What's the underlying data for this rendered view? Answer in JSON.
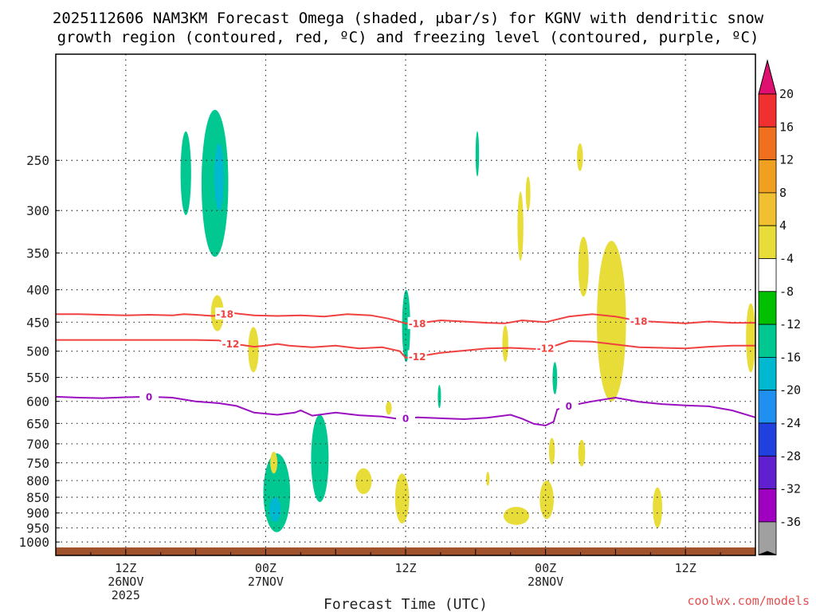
{
  "title": {
    "line1": "2025112606 NAM3KM Forecast Omega (shaded, μbar/s) for KGNV with dendritic snow",
    "line2": "growth region (contoured, red, ºC) and freezing level (contoured, purple, ºC)"
  },
  "credit": "coolwx.com/models",
  "chart_data": {
    "type": "time-height",
    "title": "2025112606 NAM3KM Forecast Omega (shaded, μbar/s) for KGNV with dendritic snow growth region (contoured, red, ºC) and freezing level (contoured, purple, ºC)",
    "xlabel": "Forecast Time (UTC)",
    "ylabel": "",
    "x_units": "forecast hour",
    "xlim": [
      0,
      60
    ],
    "ylim": [
      1050,
      170
    ],
    "y_scale": "log-pressure",
    "y_ticks": [
      250,
      300,
      350,
      400,
      450,
      500,
      550,
      600,
      650,
      700,
      750,
      800,
      850,
      900,
      950,
      1000
    ],
    "x_ticks": [
      {
        "hour": 6,
        "lines": [
          "12Z",
          "26NOV",
          "2025"
        ]
      },
      {
        "hour": 18,
        "lines": [
          "00Z",
          "27NOV"
        ]
      },
      {
        "hour": 30,
        "lines": [
          "12Z"
        ]
      },
      {
        "hour": 42,
        "lines": [
          "00Z",
          "28NOV"
        ]
      },
      {
        "hour": 54,
        "lines": [
          "12Z"
        ]
      }
    ],
    "grid": "dotted",
    "surface_color": "#a0522d",
    "colorbar": {
      "labels": [
        "20",
        "16",
        "12",
        "8",
        "4",
        "-4",
        "-8",
        "-12",
        "-16",
        "-20",
        "-24",
        "-28",
        "-32",
        "-36"
      ],
      "colors": [
        "#f03030",
        "#f07020",
        "#f0a020",
        "#f0c030",
        "#e8dc38",
        "#ffffff",
        "#00c000",
        "#00c890",
        "#00b8d0",
        "#2090f0",
        "#2040e0",
        "#6020d0",
        "#a000c0",
        "#a0a0a0"
      ],
      "top_arrow": "#e01070",
      "bottom_arrow": "#000000"
    },
    "contours": [
      {
        "name": "-18",
        "color": "#f04040",
        "level": -18,
        "points": [
          [
            0,
            437
          ],
          [
            2,
            437
          ],
          [
            4,
            438
          ],
          [
            6,
            439
          ],
          [
            8,
            438
          ],
          [
            10,
            439
          ],
          [
            11,
            437
          ],
          [
            12,
            438
          ],
          [
            13.5,
            440
          ],
          [
            15,
            435
          ],
          [
            17,
            439
          ],
          [
            19,
            440
          ],
          [
            21,
            439
          ],
          [
            23,
            441
          ],
          [
            25,
            437
          ],
          [
            27,
            439
          ],
          [
            28.5,
            444
          ],
          [
            30,
            452
          ],
          [
            31,
            452
          ],
          [
            33,
            447
          ],
          [
            35,
            449
          ],
          [
            37,
            451
          ],
          [
            38.5,
            452
          ],
          [
            40,
            447
          ],
          [
            42,
            450
          ],
          [
            44,
            441
          ],
          [
            46,
            437
          ],
          [
            48,
            441
          ],
          [
            50,
            448
          ],
          [
            52,
            450
          ],
          [
            54,
            452
          ],
          [
            56,
            449
          ],
          [
            58,
            451
          ],
          [
            60,
            451
          ]
        ]
      },
      {
        "name": "-12",
        "color": "#f04040",
        "level": -12,
        "points": [
          [
            0,
            480
          ],
          [
            2,
            480
          ],
          [
            4,
            480
          ],
          [
            6,
            480
          ],
          [
            8,
            480
          ],
          [
            10,
            480
          ],
          [
            12,
            480
          ],
          [
            14,
            481
          ],
          [
            15,
            487
          ],
          [
            16,
            489
          ],
          [
            17,
            492
          ],
          [
            18,
            490
          ],
          [
            19,
            487
          ],
          [
            20,
            490
          ],
          [
            22,
            493
          ],
          [
            24,
            490
          ],
          [
            26,
            495
          ],
          [
            28,
            493
          ],
          [
            29.5,
            500
          ],
          [
            30,
            512
          ],
          [
            31,
            510
          ],
          [
            33,
            503
          ],
          [
            35,
            499
          ],
          [
            37,
            495
          ],
          [
            39,
            494
          ],
          [
            41,
            496
          ],
          [
            42,
            495
          ],
          [
            43,
            489
          ],
          [
            44,
            482
          ],
          [
            46,
            483
          ],
          [
            48,
            488
          ],
          [
            50,
            493
          ],
          [
            52,
            494
          ],
          [
            54,
            495
          ],
          [
            56,
            492
          ],
          [
            58,
            490
          ],
          [
            60,
            490
          ]
        ]
      },
      {
        "name": "0",
        "color": "#9a10c0",
        "level": 0,
        "points": [
          [
            0,
            590
          ],
          [
            2,
            592
          ],
          [
            4,
            593
          ],
          [
            6,
            591
          ],
          [
            8,
            590
          ],
          [
            10,
            592
          ],
          [
            12,
            600
          ],
          [
            14,
            604
          ],
          [
            15.5,
            610
          ],
          [
            17,
            625
          ],
          [
            19,
            630
          ],
          [
            20.5,
            625
          ],
          [
            21,
            620
          ],
          [
            22,
            632
          ],
          [
            24,
            625
          ],
          [
            26,
            631
          ],
          [
            28,
            634
          ],
          [
            29.5,
            640
          ],
          [
            31,
            636
          ],
          [
            33,
            638
          ],
          [
            35,
            640
          ],
          [
            37,
            637
          ],
          [
            39,
            630
          ],
          [
            40,
            639
          ],
          [
            41,
            651
          ],
          [
            42,
            655
          ],
          [
            42.7,
            646
          ],
          [
            43,
            618
          ],
          [
            44,
            610
          ],
          [
            46,
            600
          ],
          [
            48,
            592
          ],
          [
            50,
            601
          ],
          [
            52,
            606
          ],
          [
            54,
            609
          ],
          [
            56,
            611
          ],
          [
            58,
            620
          ],
          [
            60,
            636
          ]
        ]
      }
    ],
    "omega_shading": [
      {
        "value": -8,
        "hours": [
          10.7,
          11.6
        ],
        "p": [
          225,
          305
        ]
      },
      {
        "value": -10,
        "hours": [
          11.0,
          11.2
        ],
        "p": [
          255,
          280
        ]
      },
      {
        "value": -8,
        "hours": [
          12.5,
          14.8
        ],
        "p": [
          208,
          355
        ]
      },
      {
        "value": -12,
        "hours": [
          13.6,
          14.4
        ],
        "p": [
          235,
          300
        ]
      },
      {
        "value": -8,
        "hours": [
          17.8,
          20.1
        ],
        "p": [
          725,
          965
        ]
      },
      {
        "value": -12,
        "hours": [
          18.3,
          19.3
        ],
        "p": [
          850,
          930
        ]
      },
      {
        "value": -8,
        "hours": [
          21.9,
          23.4
        ],
        "p": [
          630,
          865
        ]
      },
      {
        "value": -10,
        "hours": [
          22.5,
          22.8
        ],
        "p": [
          680,
          720
        ]
      },
      {
        "value": -8,
        "hours": [
          29.7,
          30.4
        ],
        "p": [
          400,
          520
        ]
      },
      {
        "value": -8,
        "hours": [
          32.8,
          33.0
        ],
        "p": [
          565,
          615
        ]
      },
      {
        "value": -8,
        "hours": [
          36.0,
          36.3
        ],
        "p": [
          225,
          265
        ]
      },
      {
        "value": -8,
        "hours": [
          42.6,
          43.0
        ],
        "p": [
          520,
          585
        ]
      },
      {
        "value": 4,
        "hours": [
          13.3,
          14.4
        ],
        "p": [
          408,
          465
        ]
      },
      {
        "value": 4,
        "hours": [
          16.5,
          17.4
        ],
        "p": [
          458,
          540
        ]
      },
      {
        "value": 4,
        "hours": [
          18.4,
          19.0
        ],
        "p": [
          720,
          780
        ]
      },
      {
        "value": 4,
        "hours": [
          25.7,
          27.1
        ],
        "p": [
          765,
          840
        ]
      },
      {
        "value": 4,
        "hours": [
          29.1,
          30.3
        ],
        "p": [
          780,
          935
        ]
      },
      {
        "value": 4,
        "hours": [
          39.6,
          40.1
        ],
        "p": [
          280,
          360
        ]
      },
      {
        "value": 4,
        "hours": [
          40.3,
          40.7
        ],
        "p": [
          265,
          300
        ]
      },
      {
        "value": 4,
        "hours": [
          38.3,
          38.8
        ],
        "p": [
          455,
          520
        ]
      },
      {
        "value": 4,
        "hours": [
          38.4,
          40.6
        ],
        "p": [
          880,
          940
        ]
      },
      {
        "value": 4,
        "hours": [
          41.5,
          42.7
        ],
        "p": [
          800,
          920
        ]
      },
      {
        "value": 4,
        "hours": [
          44.8,
          45.7
        ],
        "p": [
          330,
          410
        ]
      },
      {
        "value": 4,
        "hours": [
          46.4,
          48.9
        ],
        "p": [
          335,
          600
        ]
      },
      {
        "value": 4,
        "hours": [
          44.8,
          45.4
        ],
        "p": [
          690,
          760
        ]
      },
      {
        "value": 4,
        "hours": [
          51.2,
          52.0
        ],
        "p": [
          820,
          950
        ]
      },
      {
        "value": 4,
        "hours": [
          59.2,
          60.0
        ],
        "p": [
          420,
          540
        ]
      },
      {
        "value": 4,
        "hours": [
          28.3,
          28.8
        ],
        "p": [
          600,
          630
        ]
      },
      {
        "value": 4,
        "hours": [
          44.7,
          45.2
        ],
        "p": [
          235,
          260
        ]
      },
      {
        "value": 4,
        "hours": [
          36.9,
          37.2
        ],
        "p": [
          775,
          815
        ]
      },
      {
        "value": 4,
        "hours": [
          42.3,
          42.8
        ],
        "p": [
          685,
          755
        ]
      }
    ]
  }
}
